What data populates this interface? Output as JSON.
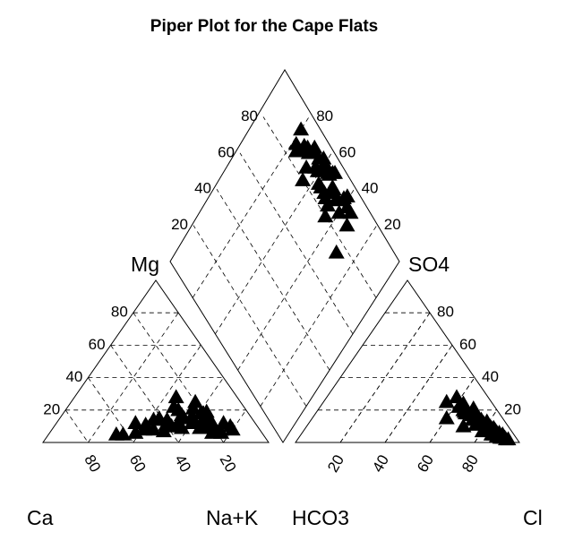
{
  "chart_data": {
    "type": "piper",
    "title": "Piper Plot for the Cape Flats",
    "labels": {
      "ca": "Ca",
      "na_k": "Na+K",
      "hco3": "HCO3",
      "cl": "Cl",
      "mg": "Mg",
      "so4": "SO4"
    },
    "color": "#000000",
    "mg": [
      8,
      12,
      5,
      15,
      10,
      20,
      6,
      9,
      14,
      18,
      7,
      11,
      25,
      13,
      10,
      16,
      22,
      8,
      12,
      6,
      9,
      19,
      14,
      11,
      7,
      28,
      17,
      10,
      13,
      5,
      9,
      15,
      21,
      12,
      8,
      18,
      11,
      6,
      14,
      10
    ],
    "na_k": [
      45,
      60,
      30,
      55,
      70,
      50,
      38,
      65,
      48,
      62,
      75,
      40,
      55,
      68,
      52,
      58,
      47,
      80,
      35,
      72,
      57,
      63,
      42,
      67,
      50,
      45,
      53,
      78,
      60,
      33,
      69,
      44,
      56,
      74,
      41,
      61,
      49,
      76,
      64,
      54
    ],
    "cl": [
      70,
      85,
      60,
      90,
      78,
      65,
      88,
      55,
      82,
      93,
      72,
      80,
      68,
      87,
      75,
      91,
      62,
      84,
      79,
      86,
      58,
      73,
      89,
      66,
      81,
      77,
      94,
      70,
      83,
      63,
      88,
      76,
      85,
      69,
      92,
      74,
      80,
      67,
      86,
      90
    ],
    "so4": [
      10,
      5,
      15,
      3,
      12,
      20,
      4,
      25,
      8,
      2,
      14,
      7,
      18,
      6,
      11,
      3,
      22,
      9,
      13,
      5,
      28,
      16,
      4,
      19,
      10,
      12,
      2,
      17,
      9,
      24,
      6,
      14,
      8,
      21,
      3,
      15,
      11,
      18,
      7,
      5
    ],
    "mg_ticks": [
      20,
      40,
      60,
      80
    ],
    "ca_ticks": [
      80,
      60,
      40,
      20
    ],
    "cl_ticks": [
      20,
      40,
      60,
      80
    ],
    "so4_ticks": [
      20,
      40,
      60,
      80
    ],
    "diamond_left_ticks": [
      20,
      40,
      60,
      80
    ],
    "diamond_right_ticks": [
      20,
      40,
      60,
      80
    ]
  }
}
